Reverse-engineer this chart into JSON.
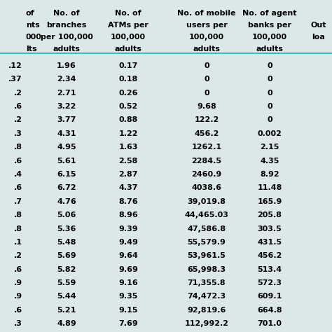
{
  "partial_col0_header": [
    "of",
    "nts",
    "000",
    "lts"
  ],
  "col1_header": [
    "No. of",
    "branches",
    "per 100,000",
    "adults"
  ],
  "col2_header": [
    "No. of",
    "ATMs per",
    "100,000",
    "adults"
  ],
  "col3_header": [
    "No. of mobile",
    "users per",
    "100,000",
    "adults"
  ],
  "col4_header": [
    "No. of agent",
    "banks per",
    "100,000",
    "adults"
  ],
  "col5_header": [
    "Out",
    "loa"
  ],
  "col0": [
    ".12",
    ".37",
    ".2",
    ".6",
    ".2",
    ".3",
    ".8",
    ".6",
    ".4",
    ".6",
    ".7",
    ".8",
    ".8",
    ".1",
    ".2",
    ".6",
    ".9",
    ".9",
    ".6",
    ".3"
  ],
  "col1": [
    "1.96",
    "2.34",
    "2.71",
    "3.22",
    "3.77",
    "4.31",
    "4.95",
    "5.61",
    "6.15",
    "6.72",
    "4.76",
    "5.06",
    "5.36",
    "5.48",
    "5.69",
    "5.82",
    "5.59",
    "5.44",
    "5.21",
    "4.89"
  ],
  "col2": [
    "0.17",
    "0.18",
    "0.26",
    "0.52",
    "0.88",
    "1.22",
    "1.63",
    "2.58",
    "2.87",
    "4.37",
    "8.76",
    "8.96",
    "9.39",
    "9.49",
    "9.64",
    "9.69",
    "9.16",
    "9.35",
    "9.15",
    "7.69"
  ],
  "col3": [
    "0",
    "0",
    "0",
    "9.68",
    "122.2",
    "456.2",
    "1262.1",
    "2284.5",
    "2460.9",
    "4038.6",
    "39,019.8",
    "44,465.03",
    "47,586.8",
    "55,579.9",
    "53,961.5",
    "65,998.3",
    "71,355.8",
    "74,472.3",
    "92,819.6",
    "112,992.2"
  ],
  "col4": [
    "0",
    "0",
    "0",
    "0",
    "0",
    "0.002",
    "2.15",
    "4.35",
    "8.92",
    "11.48",
    "165.9",
    "205.8",
    "303.5",
    "431.5",
    "456.2",
    "513.4",
    "572.3",
    "609.1",
    "664.8",
    "701.0"
  ],
  "header_line_color": "#3dbdbd",
  "bg_color": "#dce8e8",
  "text_color": "#000000",
  "font_size": 8.0,
  "header_font_size": 8.0
}
